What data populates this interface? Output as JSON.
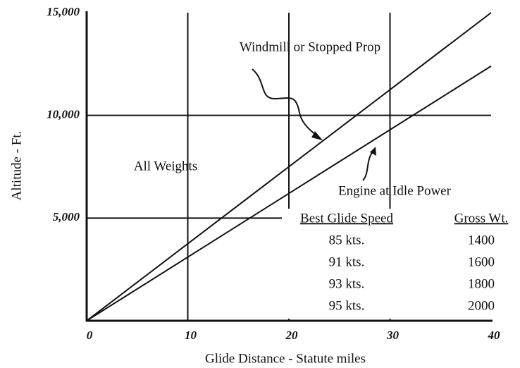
{
  "chart_data": {
    "type": "line",
    "xlabel": "Glide Distance  -  Statute miles",
    "ylabel": "Altitude  -  Ft.",
    "xlim": [
      0,
      40
    ],
    "ylim": [
      0,
      15000
    ],
    "xticks": [
      0,
      10,
      20,
      30,
      40
    ],
    "yticks": [
      {
        "value": 5000,
        "label": "5,000"
      },
      {
        "value": 10000,
        "label": "10,000"
      },
      {
        "value": 15000,
        "label": "15,000"
      }
    ],
    "grid": true,
    "series": [
      {
        "name": "Windmill or Stopped Prop",
        "color": "#111111",
        "x": [
          0,
          40
        ],
        "values": [
          0,
          15000
        ]
      },
      {
        "name": "Engine at Idle Power",
        "color": "#111111",
        "x": [
          0,
          40
        ],
        "values": [
          0,
          12400
        ]
      }
    ],
    "annotations": [
      "All Weights"
    ],
    "table": {
      "columns": [
        "Best Glide Speed",
        "Gross Wt."
      ],
      "rows": [
        [
          "85 kts.",
          1400
        ],
        [
          "91 kts.",
          1600
        ],
        [
          "93 kts.",
          1800
        ],
        [
          "95 kts.",
          2000
        ]
      ]
    }
  }
}
